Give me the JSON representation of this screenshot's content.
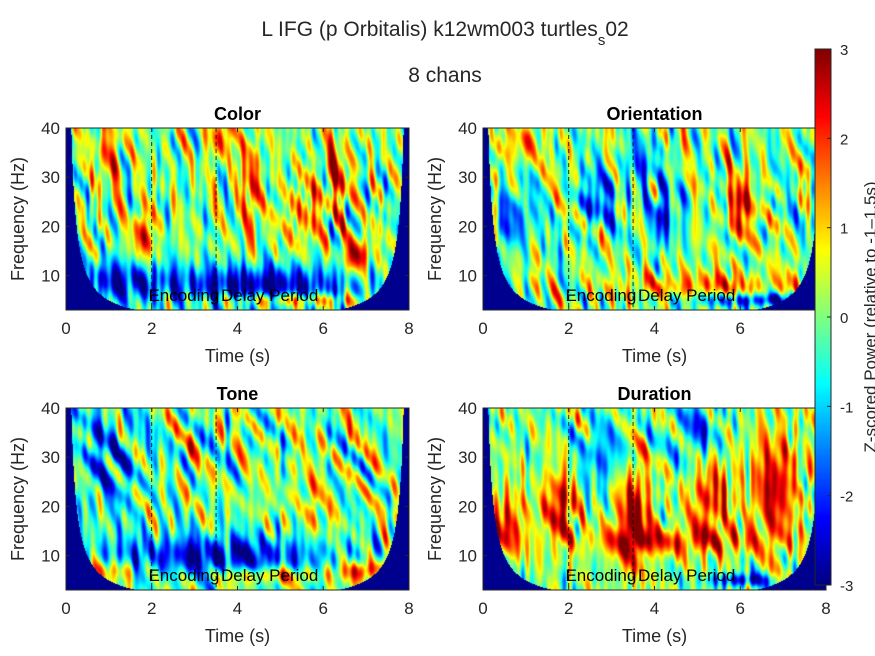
{
  "figure": {
    "title_main": "L IFG (p Orbitalis) k12wm003 turtles",
    "title_sub": "s",
    "title_tail": "02",
    "subtitle": "8 chans"
  },
  "chart_data": [
    {
      "type": "heatmap",
      "title": "Color",
      "xlabel": "Time (s)",
      "ylabel": "Frequency (Hz)",
      "xlim": [
        0,
        8
      ],
      "ylim": [
        3,
        40
      ],
      "xticks": [
        0,
        2,
        4,
        6,
        8
      ],
      "yticks": [
        10,
        20,
        30,
        40
      ],
      "event_lines": [
        2,
        3.5
      ],
      "annotations": [
        {
          "text": "Encoding",
          "x": 2.75,
          "y": 6
        },
        {
          "text": "Delay Period",
          "x": 4.75,
          "y": 6
        }
      ],
      "seed": 11,
      "blobs": [
        {
          "t": 1.8,
          "f": 18,
          "st": 0.15,
          "sf": 4,
          "a": 2.6
        },
        {
          "t": 6.8,
          "f": 14,
          "st": 0.2,
          "sf": 2.5,
          "a": 3.0
        },
        {
          "t": 4.5,
          "f": 8,
          "st": 1.6,
          "sf": 3,
          "a": -3.0
        },
        {
          "t": 1.2,
          "f": 9,
          "st": 0.8,
          "sf": 3,
          "a": -2.2
        },
        {
          "t": 5.2,
          "f": 5,
          "st": 1.2,
          "sf": 1,
          "a": 2.2
        },
        {
          "t": 4.3,
          "f": 28,
          "st": 0.2,
          "sf": 8,
          "a": 1.8
        },
        {
          "t": 6.3,
          "f": 30,
          "st": 0.25,
          "sf": 6,
          "a": 1.8
        },
        {
          "t": 1.0,
          "f": 35,
          "st": 0.25,
          "sf": 5,
          "a": 1.5
        },
        {
          "t": 3.6,
          "f": 38,
          "st": 0.2,
          "sf": 3,
          "a": 2.0
        },
        {
          "t": 5.5,
          "f": 22,
          "st": 0.3,
          "sf": 5,
          "a": 1.4
        }
      ]
    },
    {
      "type": "heatmap",
      "title": "Orientation",
      "xlabel": "Time (s)",
      "ylabel": "Frequency (Hz)",
      "xlim": [
        0,
        8
      ],
      "ylim": [
        3,
        40
      ],
      "xticks": [
        0,
        2,
        4,
        6,
        8
      ],
      "yticks": [
        10,
        20,
        30,
        40
      ],
      "event_lines": [
        2,
        3.5
      ],
      "annotations": [
        {
          "text": "Encoding",
          "x": 2.75,
          "y": 6
        },
        {
          "text": "Delay Period",
          "x": 4.75,
          "y": 6
        }
      ],
      "seed": 23,
      "blobs": [
        {
          "t": 6.0,
          "f": 24,
          "st": 0.2,
          "sf": 5,
          "a": 2.6
        },
        {
          "t": 4.2,
          "f": 22,
          "st": 0.25,
          "sf": 4,
          "a": -2.2
        },
        {
          "t": 0.7,
          "f": 21,
          "st": 0.3,
          "sf": 4,
          "a": -2.0
        },
        {
          "t": 2.6,
          "f": 25,
          "st": 0.3,
          "sf": 4,
          "a": -1.8
        },
        {
          "t": 5.3,
          "f": 8,
          "st": 1.6,
          "sf": 2,
          "a": 1.6
        },
        {
          "t": 6.5,
          "f": 5,
          "st": 1.2,
          "sf": 1,
          "a": -2.6
        },
        {
          "t": 0.9,
          "f": 37,
          "st": 0.3,
          "sf": 3,
          "a": 1.5
        },
        {
          "t": 3.6,
          "f": 32,
          "st": 0.3,
          "sf": 4,
          "a": -1.6
        }
      ]
    },
    {
      "type": "heatmap",
      "title": "Tone",
      "xlabel": "Time (s)",
      "ylabel": "Frequency (Hz)",
      "xlim": [
        0,
        8
      ],
      "ylim": [
        3,
        40
      ],
      "xticks": [
        0,
        2,
        4,
        6,
        8
      ],
      "yticks": [
        10,
        20,
        30,
        40
      ],
      "event_lines": [
        2,
        3.5
      ],
      "annotations": [
        {
          "text": "Encoding",
          "x": 2.75,
          "y": 6
        },
        {
          "text": "Delay Period",
          "x": 4.75,
          "y": 6
        }
      ],
      "seed": 37,
      "blobs": [
        {
          "t": 3.5,
          "f": 10,
          "st": 2.0,
          "sf": 3,
          "a": -2.6
        },
        {
          "t": 1.0,
          "f": 30,
          "st": 0.6,
          "sf": 8,
          "a": -1.5
        },
        {
          "t": 7.0,
          "f": 7,
          "st": 0.4,
          "sf": 1.5,
          "a": 2.6
        },
        {
          "t": 1.0,
          "f": 7,
          "st": 0.6,
          "sf": 1.5,
          "a": 1.6
        },
        {
          "t": 4.8,
          "f": 6,
          "st": 0.9,
          "sf": 1.2,
          "a": 1.8
        },
        {
          "t": 5.7,
          "f": 20,
          "st": 0.3,
          "sf": 6,
          "a": 0.8
        }
      ]
    },
    {
      "type": "heatmap",
      "title": "Duration",
      "xlabel": "Time (s)",
      "ylabel": "Frequency (Hz)",
      "xlim": [
        0,
        8
      ],
      "ylim": [
        3,
        40
      ],
      "xticks": [
        0,
        2,
        4,
        6,
        8
      ],
      "yticks": [
        10,
        20,
        30,
        40
      ],
      "event_lines": [
        2,
        3.5
      ],
      "annotations": [
        {
          "text": "Encoding",
          "x": 2.75,
          "y": 6
        },
        {
          "text": "Delay Period",
          "x": 4.75,
          "y": 6
        }
      ],
      "seed": 41,
      "blobs": [
        {
          "t": 1.8,
          "f": 20,
          "st": 0.3,
          "sf": 5,
          "a": 2.6
        },
        {
          "t": 3.5,
          "f": 18,
          "st": 0.3,
          "sf": 8,
          "a": 2.8
        },
        {
          "t": 5.3,
          "f": 22,
          "st": 0.35,
          "sf": 6,
          "a": 2.3
        },
        {
          "t": 6.8,
          "f": 24,
          "st": 0.4,
          "sf": 8,
          "a": 2.6
        },
        {
          "t": 0.5,
          "f": 16,
          "st": 0.35,
          "sf": 5,
          "a": 2.3
        },
        {
          "t": 4.5,
          "f": 13,
          "st": 1.5,
          "sf": 2,
          "a": 1.8
        },
        {
          "t": 6.0,
          "f": 5,
          "st": 0.5,
          "sf": 1,
          "a": -2.6
        },
        {
          "t": 2.8,
          "f": 30,
          "st": 0.4,
          "sf": 5,
          "a": -1.6
        },
        {
          "t": 5.0,
          "f": 35,
          "st": 0.4,
          "sf": 5,
          "a": -1.6
        }
      ]
    }
  ],
  "colorbar": {
    "colormap": "jet",
    "clim": [
      -3,
      3
    ],
    "ticks": [
      -3,
      -2,
      -1,
      0,
      1,
      2,
      3
    ],
    "label": "Z-scored Power (relative to -1–1.5s)"
  },
  "colors": {
    "axis": "#262626",
    "grid_outline": "#262626",
    "background": "#ffffff"
  }
}
